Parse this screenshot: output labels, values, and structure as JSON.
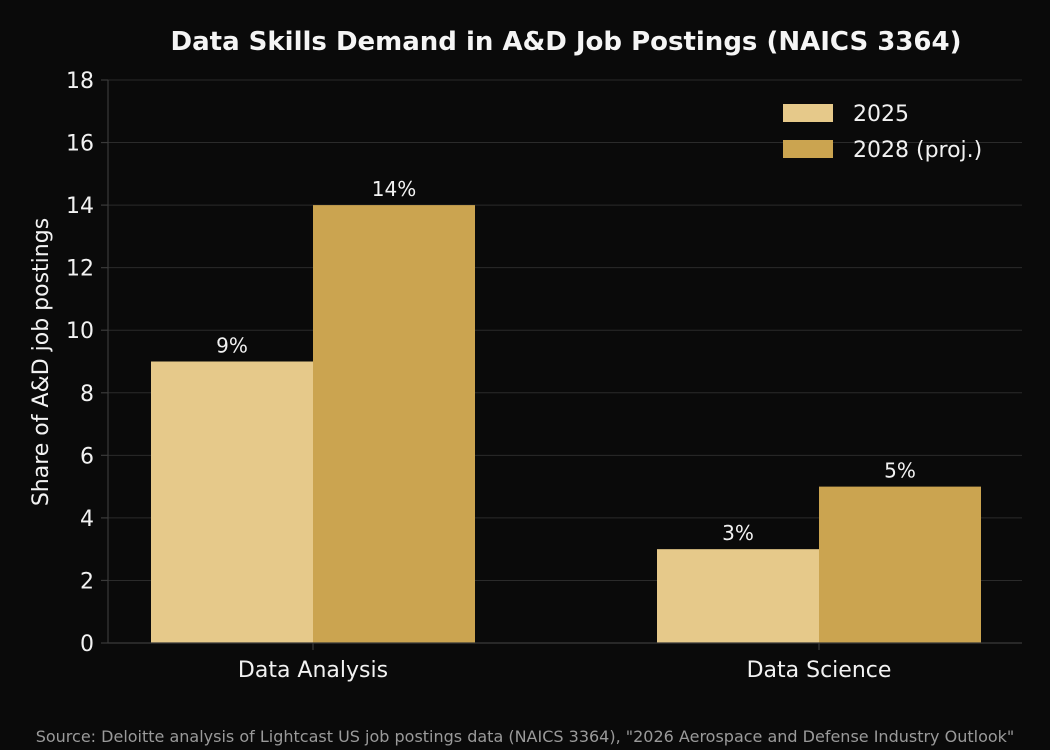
{
  "chart_data": {
    "type": "bar",
    "title": "Data Skills Demand in A&D Job Postings (NAICS 3364)",
    "ylabel": "Share of A&D job postings",
    "xlabel": "",
    "categories": [
      "Data Analysis",
      "Data Science"
    ],
    "series": [
      {
        "name": "2025",
        "values": [
          9,
          3
        ],
        "labels": [
          "9%",
          "3%"
        ],
        "color": "#e6c98a"
      },
      {
        "name": "2028 (proj.)",
        "values": [
          14,
          5
        ],
        "labels": [
          "14%",
          "5%"
        ],
        "color": "#cba450"
      }
    ],
    "ylim": [
      0,
      18
    ],
    "yticks": [
      0,
      2,
      4,
      6,
      8,
      10,
      12,
      14,
      16,
      18
    ],
    "grid": true,
    "legend_position": "top-right",
    "source": "Source: Deloitte analysis of Lightcast US job postings data (NAICS 3364), \"2026 Aerospace and Defense Industry Outlook\""
  },
  "colors": {
    "background": "#0a0a0a",
    "grid": "#2b2b2b",
    "axis": "#3a3a3a",
    "text": "#f2f2f2",
    "source_text": "#9a9a9a"
  }
}
